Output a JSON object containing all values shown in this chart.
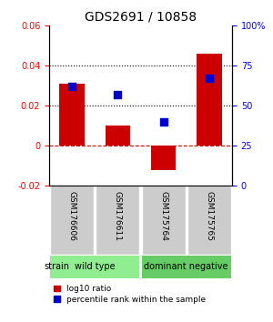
{
  "title": "GDS2691 / 10858",
  "samples": [
    "GSM176606",
    "GSM176611",
    "GSM175764",
    "GSM175765"
  ],
  "log10_ratio": [
    0.031,
    0.01,
    -0.012,
    0.046
  ],
  "percentile_rank": [
    0.62,
    0.57,
    0.4,
    0.67
  ],
  "ylim_left": [
    -0.02,
    0.06
  ],
  "ylim_right": [
    0,
    1.0
  ],
  "yticks_left": [
    -0.02,
    0,
    0.02,
    0.04,
    0.06
  ],
  "yticks_right": [
    0,
    0.25,
    0.5,
    0.75,
    1.0
  ],
  "ytick_labels_left": [
    "-0.02",
    "0",
    "0.02",
    "0.04",
    "0.06"
  ],
  "ytick_labels_right": [
    "0",
    "25",
    "50",
    "75",
    "100%"
  ],
  "hlines": [
    0.02,
    0.04
  ],
  "bar_color": "#cc0000",
  "dot_color": "#0000cc",
  "zero_line_color": "#cc0000",
  "groups": [
    {
      "label": "wild type",
      "samples": [
        0,
        1
      ],
      "color": "#90ee90"
    },
    {
      "label": "dominant negative",
      "samples": [
        2,
        3
      ],
      "color": "#66cc66"
    }
  ],
  "strain_label": "strain",
  "legend_bar_label": "log10 ratio",
  "legend_dot_label": "percentile rank within the sample",
  "background_color": "#ffffff",
  "plot_bg_color": "#ffffff",
  "sample_box_color": "#cccccc",
  "grid_line_color": "#000000"
}
